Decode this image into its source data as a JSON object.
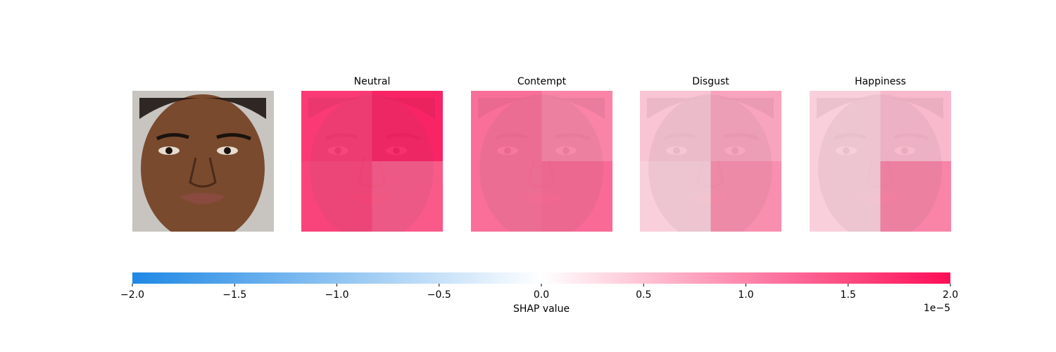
{
  "chart_data": {
    "type": "heatmap",
    "panels": [
      {
        "title": "Neutral",
        "values": [
          [
            1.8,
            2.0
          ],
          [
            1.7,
            1.5
          ]
        ]
      },
      {
        "title": "Contempt",
        "values": [
          [
            1.3,
            1.1
          ],
          [
            1.3,
            1.35
          ]
        ]
      },
      {
        "title": "Disgust",
        "values": [
          [
            0.5,
            0.8
          ],
          [
            0.4,
            1.0
          ]
        ]
      },
      {
        "title": "Happiness",
        "values": [
          [
            0.4,
            0.6
          ],
          [
            0.4,
            1.1
          ]
        ]
      }
    ],
    "colors": [
      "#1e88e5",
      "#ffffff",
      "#ff0d57"
    ],
    "clim": [
      -2,
      2
    ],
    "cticks": [
      {
        "value": -2,
        "label": "−2.0"
      },
      {
        "value": -1.5,
        "label": "−1.5"
      },
      {
        "value": -1,
        "label": "−1.0"
      },
      {
        "value": -0.5,
        "label": "−0.5"
      },
      {
        "value": 0,
        "label": "0.0"
      },
      {
        "value": 0.5,
        "label": "0.5"
      },
      {
        "value": 1,
        "label": "1.0"
      },
      {
        "value": 1.5,
        "label": "1.5"
      },
      {
        "value": 2,
        "label": "2.0"
      }
    ],
    "colorbar_label": "SHAP value",
    "offset_text": "1e−5"
  }
}
